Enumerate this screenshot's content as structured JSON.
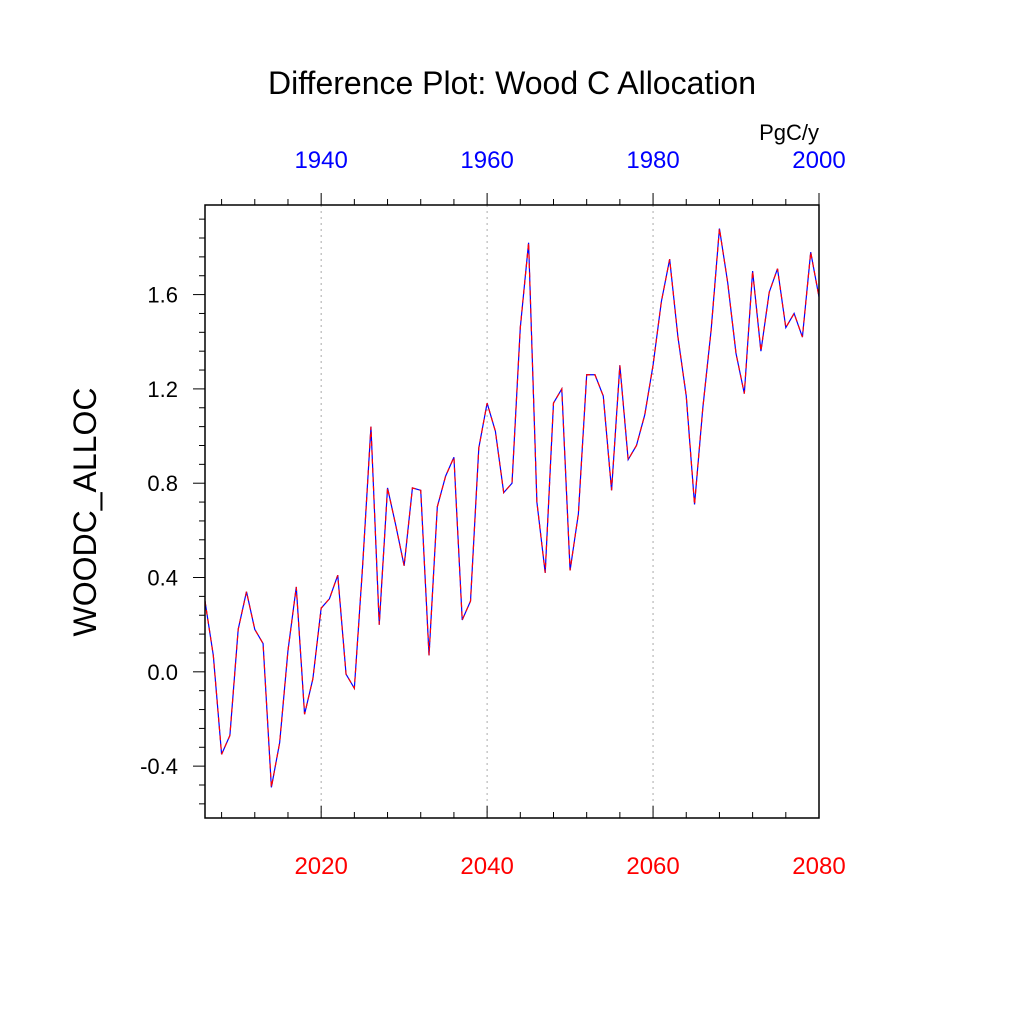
{
  "chart_data": {
    "type": "line",
    "title": "Difference Plot: Wood C Allocation",
    "ylabel": "WOODC_ALLOC",
    "units": "PgC/y",
    "ylim": [
      -0.62,
      1.98
    ],
    "y_ticks": [
      -0.4,
      0.0,
      0.4,
      0.8,
      1.2,
      1.6
    ],
    "x_bottom": {
      "range": [
        2006,
        2080
      ],
      "ticks": [
        2020,
        2040,
        2060,
        2080
      ],
      "color": "#ff0000"
    },
    "x_top": {
      "range": [
        1926,
        2000
      ],
      "ticks": [
        1940,
        1960,
        1980,
        2000
      ],
      "color": "#0000ff"
    },
    "grid": "dotted vertical lines at bottom-axis major ticks",
    "series": [
      {
        "color": "#0000ff",
        "style": "solid",
        "x": [
          2006,
          2007,
          2008,
          2009,
          2010,
          2011,
          2012,
          2013,
          2014,
          2015,
          2016,
          2017,
          2018,
          2019,
          2020,
          2021,
          2022,
          2023,
          2024,
          2025,
          2026,
          2027,
          2028,
          2029,
          2030,
          2031,
          2032,
          2033,
          2034,
          2035,
          2036,
          2037,
          2038,
          2039,
          2040,
          2041,
          2042,
          2043,
          2044,
          2045,
          2046,
          2047,
          2048,
          2049,
          2050,
          2051,
          2052,
          2053,
          2054,
          2055,
          2056,
          2057,
          2058,
          2059,
          2060,
          2061,
          2062,
          2063,
          2064,
          2065,
          2066,
          2067,
          2068,
          2069,
          2070,
          2071,
          2072,
          2073,
          2074,
          2075,
          2076,
          2077,
          2078,
          2079,
          2080
        ],
        "values": [
          0.3,
          0.07,
          -0.35,
          -0.27,
          0.18,
          0.34,
          0.18,
          0.12,
          -0.49,
          -0.3,
          0.09,
          0.36,
          -0.18,
          -0.03,
          0.27,
          0.31,
          0.41,
          -0.01,
          -0.07,
          0.45,
          1.04,
          0.2,
          0.78,
          0.62,
          0.45,
          0.78,
          0.77,
          0.07,
          0.7,
          0.83,
          0.91,
          0.22,
          0.3,
          0.95,
          1.14,
          1.02,
          0.76,
          0.8,
          1.46,
          1.82,
          0.72,
          0.42,
          1.14,
          1.2,
          0.43,
          0.67,
          1.26,
          1.26,
          1.17,
          0.77,
          1.3,
          0.9,
          0.96,
          1.09,
          1.3,
          1.57,
          1.75,
          1.42,
          1.17,
          0.71,
          1.12,
          1.45,
          1.88,
          1.65,
          1.35,
          1.18,
          1.7,
          1.36,
          1.61,
          1.71,
          1.46,
          1.52,
          1.42,
          1.78,
          1.59
        ]
      },
      {
        "color": "#ff0000",
        "style": "dashed",
        "x": [
          2006,
          2007,
          2008,
          2009,
          2010,
          2011,
          2012,
          2013,
          2014,
          2015,
          2016,
          2017,
          2018,
          2019,
          2020,
          2021,
          2022,
          2023,
          2024,
          2025,
          2026,
          2027,
          2028,
          2029,
          2030,
          2031,
          2032,
          2033,
          2034,
          2035,
          2036,
          2037,
          2038,
          2039,
          2040,
          2041,
          2042,
          2043,
          2044,
          2045,
          2046,
          2047,
          2048,
          2049,
          2050,
          2051,
          2052,
          2053,
          2054,
          2055,
          2056,
          2057,
          2058,
          2059,
          2060,
          2061,
          2062,
          2063,
          2064,
          2065,
          2066,
          2067,
          2068,
          2069,
          2070,
          2071,
          2072,
          2073,
          2074,
          2075,
          2076,
          2077,
          2078,
          2079,
          2080
        ],
        "values": [
          0.3,
          0.07,
          -0.35,
          -0.27,
          0.18,
          0.34,
          0.18,
          0.12,
          -0.49,
          -0.3,
          0.09,
          0.36,
          -0.18,
          -0.03,
          0.27,
          0.31,
          0.41,
          -0.01,
          -0.07,
          0.45,
          1.04,
          0.2,
          0.78,
          0.62,
          0.45,
          0.78,
          0.77,
          0.07,
          0.7,
          0.83,
          0.91,
          0.22,
          0.3,
          0.95,
          1.14,
          1.02,
          0.76,
          0.8,
          1.46,
          1.82,
          0.72,
          0.42,
          1.14,
          1.2,
          0.43,
          0.67,
          1.26,
          1.26,
          1.17,
          0.77,
          1.3,
          0.9,
          0.96,
          1.09,
          1.3,
          1.57,
          1.75,
          1.42,
          1.17,
          0.71,
          1.12,
          1.45,
          1.88,
          1.65,
          1.35,
          1.18,
          1.7,
          1.36,
          1.61,
          1.71,
          1.46,
          1.52,
          1.42,
          1.78,
          1.59
        ]
      }
    ]
  }
}
